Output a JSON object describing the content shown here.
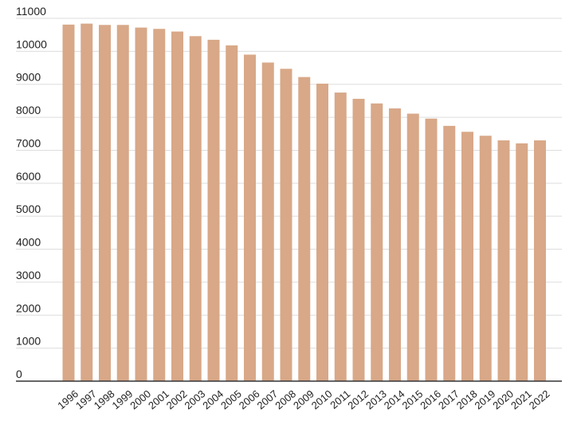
{
  "chart_data": {
    "type": "bar",
    "title": "",
    "xlabel": "",
    "ylabel": "",
    "categories": [
      "1996",
      "1997",
      "1998",
      "1999",
      "2000",
      "2001",
      "2002",
      "2003",
      "2004",
      "2005",
      "2006",
      "2007",
      "2008",
      "2009",
      "2010",
      "2011",
      "2012",
      "2013",
      "2014",
      "2015",
      "2016",
      "2017",
      "2018",
      "2019",
      "2020",
      "2021",
      "2022"
    ],
    "values": [
      10810,
      10840,
      10800,
      10800,
      10720,
      10680,
      10600,
      10460,
      10350,
      10180,
      9900,
      9660,
      9470,
      9220,
      9020,
      8750,
      8560,
      8420,
      8270,
      8110,
      7960,
      7740,
      7560,
      7440,
      7300,
      7210,
      7300
    ],
    "yticks": [
      0,
      1000,
      2000,
      3000,
      4000,
      5000,
      6000,
      7000,
      8000,
      9000,
      10000,
      11000
    ],
    "ylim": [
      0,
      11000
    ],
    "grid": true,
    "bar_color": "#d8a888",
    "grid_color": "#dddddd",
    "axis_color": "#333333"
  }
}
